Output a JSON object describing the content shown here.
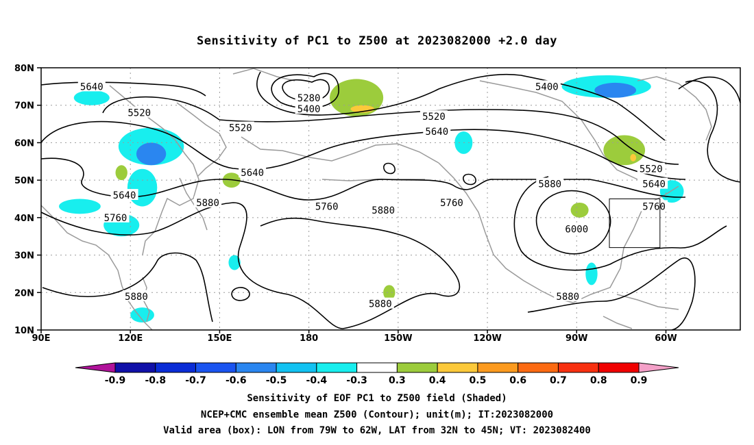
{
  "title": "Sensitivity of PC1 to Z500 at 2023082000 +2.0 day",
  "map": {
    "projection": "equirectangular",
    "lon_range": [
      90,
      325
    ],
    "lat_range": [
      10,
      80
    ],
    "lat_labels": [
      "80N",
      "70N",
      "60N",
      "50N",
      "40N",
      "30N",
      "20N",
      "10N"
    ],
    "lon_labels": [
      "90E",
      "120E",
      "150E",
      "180",
      "150W",
      "120W",
      "90W",
      "60W"
    ],
    "grid": "dotted",
    "valid_box": {
      "lon": [
        281,
        298
      ],
      "lat": [
        32,
        45
      ]
    },
    "colors": {
      "coast": "#9a9a9a",
      "contour": "#000000",
      "frame": "#000000"
    }
  },
  "contours": {
    "labels": [
      {
        "text": "5640",
        "lon": 107,
        "lat": 75
      },
      {
        "text": "5520",
        "lon": 123,
        "lat": 68
      },
      {
        "text": "5280",
        "lon": 180,
        "lat": 72
      },
      {
        "text": "5400",
        "lon": 180,
        "lat": 69
      },
      {
        "text": "5520",
        "lon": 157,
        "lat": 64
      },
      {
        "text": "5640",
        "lon": 161,
        "lat": 52
      },
      {
        "text": "5640",
        "lon": 118,
        "lat": 46
      },
      {
        "text": "5760",
        "lon": 115,
        "lat": 40
      },
      {
        "text": "5880",
        "lon": 146,
        "lat": 44
      },
      {
        "text": "5760",
        "lon": 186,
        "lat": 43
      },
      {
        "text": "5880",
        "lon": 205,
        "lat": 42
      },
      {
        "text": "5760",
        "lon": 228,
        "lat": 44
      },
      {
        "text": "5640",
        "lon": 223,
        "lat": 63
      },
      {
        "text": "5520",
        "lon": 222,
        "lat": 67
      },
      {
        "text": "5400",
        "lon": 260,
        "lat": 75
      },
      {
        "text": "5880",
        "lon": 261,
        "lat": 49
      },
      {
        "text": "6000",
        "lon": 270,
        "lat": 37
      },
      {
        "text": "5520",
        "lon": 295,
        "lat": 53
      },
      {
        "text": "5640",
        "lon": 296,
        "lat": 49
      },
      {
        "text": "5760",
        "lon": 296,
        "lat": 43
      },
      {
        "text": "5880",
        "lon": 122,
        "lat": 19
      },
      {
        "text": "5880",
        "lon": 204,
        "lat": 17
      },
      {
        "text": "5880",
        "lon": 267,
        "lat": 19
      }
    ]
  },
  "colorbar": {
    "tick_labels": [
      "-0.9",
      "-0.8",
      "-0.7",
      "-0.6",
      "-0.5",
      "-0.4",
      "-0.3",
      "0.3",
      "0.4",
      "0.5",
      "0.6",
      "0.7",
      "0.8",
      "0.9"
    ],
    "colors": [
      "#b0129a",
      "#1010a8",
      "#0a2cd6",
      "#1a54f0",
      "#2a86f0",
      "#12c2f2",
      "#18eeee",
      "#ffffff",
      "#9ccc3c",
      "#fcc93a",
      "#fc9a1e",
      "#fc6a12",
      "#f83010",
      "#f00000",
      "#f4a0c8"
    ]
  },
  "shading": [
    {
      "level": "-0.4",
      "color": "#18eeee",
      "lon": 107,
      "lat": 72,
      "rx": 6,
      "ry": 2
    },
    {
      "level": "-0.4",
      "color": "#18eeee",
      "lon": 127,
      "lat": 59,
      "rx": 11,
      "ry": 5
    },
    {
      "level": "-0.5",
      "color": "#2a86f0",
      "lon": 127,
      "lat": 57,
      "rx": 5,
      "ry": 3
    },
    {
      "level": "-0.4",
      "color": "#18eeee",
      "lon": 124,
      "lat": 48,
      "rx": 5,
      "ry": 5
    },
    {
      "level": "-0.4",
      "color": "#18eeee",
      "lon": 103,
      "lat": 43,
      "rx": 7,
      "ry": 2
    },
    {
      "level": "-0.4",
      "color": "#18eeee",
      "lon": 117,
      "lat": 38,
      "rx": 6,
      "ry": 3
    },
    {
      "level": "-0.4",
      "color": "#18eeee",
      "lon": 155,
      "lat": 28,
      "rx": 2,
      "ry": 2
    },
    {
      "level": "-0.4",
      "color": "#18eeee",
      "lon": 124,
      "lat": 14,
      "rx": 4,
      "ry": 2
    },
    {
      "level": "-0.4",
      "color": "#18eeee",
      "lon": 232,
      "lat": 60,
      "rx": 3,
      "ry": 3
    },
    {
      "level": "-0.4",
      "color": "#18eeee",
      "lon": 280,
      "lat": 75,
      "rx": 15,
      "ry": 3
    },
    {
      "level": "-0.5",
      "color": "#2a86f0",
      "lon": 283,
      "lat": 74,
      "rx": 7,
      "ry": 2
    },
    {
      "level": "-0.4",
      "color": "#18eeee",
      "lon": 302,
      "lat": 47,
      "rx": 4,
      "ry": 3
    },
    {
      "level": "-0.4",
      "color": "#18eeee",
      "lon": 275,
      "lat": 25,
      "rx": 2,
      "ry": 3
    },
    {
      "level": "0.3",
      "color": "#9ccc3c",
      "lon": 196,
      "lat": 72,
      "rx": 9,
      "ry": 5
    },
    {
      "level": "0.4",
      "color": "#fcc93a",
      "lon": 198,
      "lat": 69,
      "rx": 4,
      "ry": 1
    },
    {
      "level": "0.3",
      "color": "#9ccc3c",
      "lon": 154,
      "lat": 50,
      "rx": 3,
      "ry": 2
    },
    {
      "level": "0.3",
      "color": "#9ccc3c",
      "lon": 117,
      "lat": 52,
      "rx": 2,
      "ry": 2
    },
    {
      "level": "0.3",
      "color": "#9ccc3c",
      "lon": 207,
      "lat": 20,
      "rx": 2,
      "ry": 2
    },
    {
      "level": "0.3",
      "color": "#9ccc3c",
      "lon": 271,
      "lat": 42,
      "rx": 3,
      "ry": 2
    },
    {
      "level": "0.3",
      "color": "#9ccc3c",
      "lon": 286,
      "lat": 58,
      "rx": 7,
      "ry": 4
    },
    {
      "level": "0.4",
      "color": "#fcc93a",
      "lon": 289,
      "lat": 56,
      "rx": 1,
      "ry": 1
    }
  ],
  "captions": [
    "Sensitivity of EOF PC1 to Z500 field (Shaded)",
    "NCEP+CMC ensemble mean Z500 (Contour); unit(m); IT:2023082000",
    "Valid area (box): LON from 79W to 62W, LAT from 32N to 45N; VT: 2023082400"
  ]
}
